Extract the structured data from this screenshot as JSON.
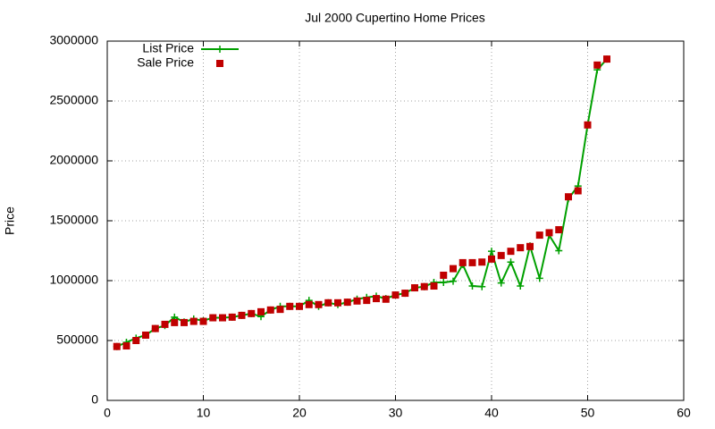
{
  "chart_data": {
    "type": "line",
    "title": "Jul 2000 Cupertino Home Prices",
    "y_label": "Price",
    "x": [
      1,
      2,
      3,
      4,
      5,
      6,
      7,
      8,
      9,
      10,
      11,
      12,
      13,
      14,
      15,
      16,
      17,
      18,
      19,
      20,
      21,
      22,
      23,
      24,
      25,
      26,
      27,
      28,
      29,
      30,
      31,
      32,
      33,
      34,
      35,
      36,
      37,
      38,
      39,
      40,
      41,
      42,
      43,
      44,
      45,
      46,
      47,
      48,
      49,
      50,
      51,
      52
    ],
    "series": [
      {
        "name": "List Price",
        "color": "#00a000",
        "style": "linespoints",
        "values": [
          450000,
          485000,
          520000,
          545000,
          600000,
          625000,
          695000,
          655000,
          680000,
          665000,
          690000,
          690000,
          695000,
          710000,
          725000,
          700000,
          755000,
          785000,
          785000,
          785000,
          835000,
          785000,
          815000,
          800000,
          820000,
          845000,
          860000,
          870000,
          850000,
          880000,
          895000,
          940000,
          950000,
          985000,
          985000,
          995000,
          1135000,
          955000,
          950000,
          1245000,
          980000,
          1155000,
          955000,
          1290000,
          1020000,
          1380000,
          1250000,
          1685000,
          1790000,
          2300000,
          2760000,
          2850000
        ]
      },
      {
        "name": "Sale Price",
        "color": "#c00000",
        "style": "points",
        "values": [
          450000,
          455000,
          500000,
          545000,
          600000,
          635000,
          650000,
          650000,
          660000,
          660000,
          690000,
          690000,
          695000,
          710000,
          725000,
          740000,
          755000,
          760000,
          785000,
          785000,
          800000,
          800000,
          815000,
          815000,
          820000,
          830000,
          835000,
          850000,
          845000,
          880000,
          895000,
          940000,
          950000,
          955000,
          1045000,
          1100000,
          1150000,
          1150000,
          1155000,
          1180000,
          1210000,
          1245000,
          1275000,
          1285000,
          1380000,
          1400000,
          1425000,
          1700000,
          1750000,
          2300000,
          2800000,
          2850000
        ]
      }
    ],
    "xlim": [
      0,
      60
    ],
    "xticks": [
      0,
      10,
      20,
      30,
      40,
      50,
      60
    ],
    "ylim": [
      0,
      3000000
    ],
    "yticks": [
      0,
      500000,
      1000000,
      1500000,
      2000000,
      2500000,
      3000000
    ],
    "grid": true,
    "legend": "top-left"
  }
}
